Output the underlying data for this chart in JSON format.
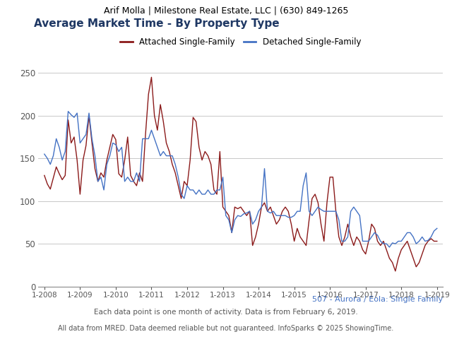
{
  "header": "Arif Molla | Milestone Real Estate, LLC | (630) 849-1265",
  "title": "Average Market Time - By Property Type",
  "footer1": "507 - Aurora / Eola: Single Family",
  "footer2": "Each data point is one month of activity. Data is from February 6, 2019.",
  "footer3": "All data from MRED. Data deemed reliable but not guaranteed. InfoSparks © 2025 ShowingTime.",
  "legend_attached": "Attached Single-Family",
  "legend_detached": "Detached Single-Family",
  "color_attached": "#8B1A1A",
  "color_detached": "#4472C4",
  "title_color": "#1F3864",
  "header_bg": "#E0E0E0",
  "footer1_color": "#4472C4",
  "footer_color": "#555555",
  "ylim": [
    0,
    260
  ],
  "yticks": [
    0,
    50,
    100,
    150,
    200,
    250
  ],
  "start_year": 2008,
  "n_year_ticks": 12,
  "attached": [
    130,
    120,
    114,
    127,
    140,
    132,
    125,
    130,
    195,
    168,
    175,
    148,
    108,
    148,
    165,
    200,
    168,
    138,
    123,
    133,
    128,
    148,
    163,
    178,
    172,
    132,
    128,
    148,
    175,
    130,
    123,
    118,
    133,
    123,
    178,
    225,
    245,
    200,
    183,
    213,
    193,
    168,
    158,
    143,
    133,
    118,
    103,
    123,
    118,
    148,
    198,
    193,
    163,
    148,
    158,
    153,
    143,
    113,
    108,
    158,
    93,
    88,
    83,
    63,
    93,
    91,
    93,
    88,
    83,
    88,
    48,
    58,
    73,
    93,
    98,
    88,
    93,
    83,
    73,
    78,
    88,
    93,
    88,
    73,
    53,
    68,
    58,
    53,
    48,
    78,
    103,
    108,
    98,
    73,
    53,
    98,
    128,
    128,
    88,
    58,
    48,
    58,
    73,
    58,
    48,
    58,
    53,
    43,
    38,
    53,
    73,
    68,
    53,
    48,
    53,
    43,
    33,
    28,
    18,
    33,
    43,
    48,
    53,
    43,
    33,
    23,
    28,
    38,
    48,
    53,
    56,
    53,
    53
  ],
  "detached": [
    155,
    150,
    143,
    153,
    173,
    163,
    148,
    158,
    205,
    201,
    198,
    203,
    168,
    173,
    178,
    203,
    173,
    153,
    123,
    128,
    113,
    143,
    153,
    168,
    166,
    158,
    163,
    123,
    128,
    123,
    123,
    133,
    123,
    173,
    173,
    173,
    183,
    173,
    163,
    153,
    158,
    153,
    153,
    153,
    143,
    128,
    108,
    103,
    118,
    113,
    113,
    108,
    113,
    108,
    108,
    113,
    108,
    108,
    113,
    113,
    128,
    83,
    78,
    63,
    78,
    83,
    82,
    85,
    86,
    88,
    73,
    78,
    88,
    93,
    138,
    88,
    86,
    88,
    83,
    83,
    83,
    83,
    81,
    81,
    83,
    88,
    88,
    118,
    133,
    88,
    83,
    88,
    93,
    90,
    88,
    88,
    88,
    88,
    88,
    78,
    53,
    53,
    58,
    88,
    93,
    88,
    83,
    53,
    53,
    53,
    58,
    63,
    60,
    53,
    50,
    50,
    46,
    51,
    50,
    53,
    53,
    58,
    63,
    63,
    58,
    50,
    53,
    58,
    53,
    54,
    58,
    65,
    68
  ]
}
